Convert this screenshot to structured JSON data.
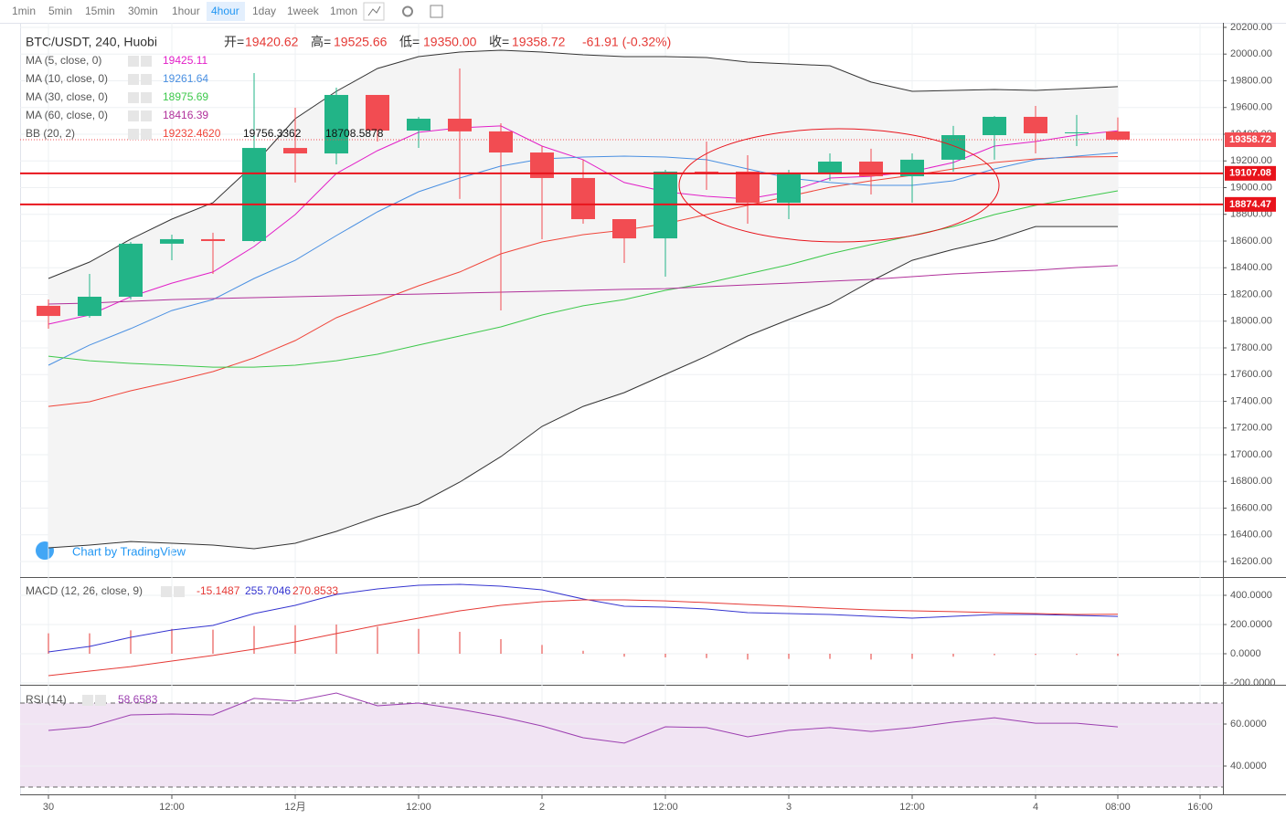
{
  "toolbar": {
    "intervals": [
      "1min",
      "5min",
      "15min",
      "30min",
      "1hour",
      "4hour",
      "1day",
      "1week",
      "1mon"
    ],
    "active": "4hour"
  },
  "watermark": "Chart by TradingView",
  "chart_data": [
    {
      "type": "candlestick",
      "title": "BTC/USDT, 240, Huobi",
      "header": {
        "labels": [
          "开=",
          "高=",
          "低=",
          "收="
        ],
        "values": [
          "19420.62",
          "19525.66",
          "19350.00",
          "19358.72"
        ],
        "change": "-61.91 (-0.32%)"
      },
      "categories": [
        "30",
        null,
        null,
        "12:00",
        null,
        null,
        "12月",
        null,
        null,
        "12:00",
        null,
        null,
        "2",
        null,
        null,
        "12:00",
        null,
        null,
        "3",
        null,
        null,
        "12:00",
        null,
        null,
        "4",
        null,
        "08:00"
      ],
      "future_categories": [
        null,
        "16:00"
      ],
      "open": [
        18115,
        18039,
        18183,
        18580,
        18614,
        18600,
        19297,
        19256,
        19694,
        19427,
        19516,
        19421,
        19263,
        19072,
        18764,
        18620,
        19120,
        19120,
        18887,
        19106,
        19195,
        19085,
        19209,
        19393,
        19530,
        19407,
        19420.62
      ],
      "high": [
        18162,
        18354,
        18593,
        18648,
        18662,
        19858,
        19598,
        19749,
        19694,
        19530,
        19892,
        19482,
        19311,
        19209,
        18764,
        19133,
        19345,
        19243,
        19133,
        19256,
        19291,
        19256,
        19462,
        19537,
        19612,
        19544,
        19525.66
      ],
      "low": [
        17944,
        18026,
        18162,
        18456,
        18354,
        18593,
        19038,
        19174,
        19345,
        19297,
        18915,
        18080,
        18614,
        18730,
        18436,
        18333,
        18983,
        18730,
        18764,
        19051,
        18949,
        18887,
        19120,
        19209,
        19256,
        19311,
        19350
      ],
      "close": [
        18039,
        18183,
        18580,
        18614,
        18600,
        19297,
        19256,
        19694,
        19427,
        19516,
        19421,
        19263,
        19072,
        18764,
        18620,
        19120,
        19113,
        18887,
        19106,
        19195,
        19085,
        19209,
        19393,
        19530,
        19407,
        19414,
        19358.72
      ],
      "up_color": "#22b487",
      "down_color": "#f24c52",
      "ylim": [
        16084,
        20234
      ],
      "yticks": [
        {
          "value": 16200,
          "label": "16200.00"
        },
        {
          "value": 16400,
          "label": "16400.00"
        },
        {
          "value": 16600,
          "label": "16600.00"
        },
        {
          "value": 16800,
          "label": "16800.00"
        },
        {
          "value": 17000,
          "label": "17000.00"
        },
        {
          "value": 17200,
          "label": "17200.00"
        },
        {
          "value": 17400,
          "label": "17400.00"
        },
        {
          "value": 17600,
          "label": "17600.00"
        },
        {
          "value": 17800,
          "label": "17800.00"
        },
        {
          "value": 18000,
          "label": "18000.00"
        },
        {
          "value": 18200,
          "label": "18200.00"
        },
        {
          "value": 18400,
          "label": "18400.00"
        },
        {
          "value": 18600,
          "label": "18600.00"
        },
        {
          "value": 18800,
          "label": "18800.00"
        },
        {
          "value": 19000,
          "label": "19000.00"
        },
        {
          "value": 19200,
          "label": "19200.00"
        },
        {
          "value": 19400,
          "label": "19400.00"
        },
        {
          "value": 19600,
          "label": "19600.00"
        },
        {
          "value": 19800,
          "label": "19800.00"
        },
        {
          "value": 20000,
          "label": "20000.00"
        },
        {
          "value": 20200,
          "label": "20200.00"
        }
      ],
      "grid": true,
      "hlines": [
        19107.08,
        18874.47
      ],
      "hline_color": "#e8141c",
      "series": [
        {
          "name": "MA (5, close, 0)",
          "color": "#e21fc8",
          "values": [
            17978,
            18046,
            18183,
            18285,
            18368,
            18559,
            18798,
            19106,
            19277,
            19414,
            19448,
            19462,
            19311,
            19209,
            19038,
            18969,
            18935,
            18915,
            18969,
            19072,
            19085,
            19120,
            19188,
            19311,
            19345,
            19393,
            19425.11
          ]
        },
        {
          "name": "MA (10, close, 0)",
          "color": "#4a90e2",
          "values": [
            17670,
            17821,
            17944,
            18080,
            18162,
            18320,
            18456,
            18641,
            18819,
            18969,
            19072,
            19161,
            19215,
            19229,
            19236,
            19229,
            19209,
            19140,
            19072,
            19038,
            19017,
            19017,
            19051,
            19140,
            19209,
            19236,
            19261.64
          ]
        },
        {
          "name": "MA (30, close, 0)",
          "color": "#3cc84a",
          "values": [
            17738,
            17704,
            17684,
            17670,
            17656,
            17656,
            17670,
            17704,
            17752,
            17821,
            17889,
            17957,
            18046,
            18115,
            18162,
            18231,
            18285,
            18354,
            18422,
            18504,
            18573,
            18641,
            18709,
            18798,
            18867,
            18921,
            18975.69
          ]
        },
        {
          "name": "MA (60, close, 0)",
          "color": "#b0309a",
          "values": [
            18128,
            18135,
            18149,
            18162,
            18169,
            18176,
            18183,
            18190,
            18197,
            18203,
            18210,
            18217,
            18224,
            18231,
            18238,
            18244,
            18258,
            18272,
            18285,
            18299,
            18313,
            18333,
            18354,
            18368,
            18381,
            18402,
            18416.39
          ]
        }
      ],
      "bb": {
        "name": "BB (20, 2)",
        "basis": {
          "color": "#f0453a",
          "values": [
            17362,
            17397,
            17479,
            17547,
            17622,
            17725,
            17855,
            18026,
            18149,
            18265,
            18368,
            18504,
            18593,
            18648,
            18682,
            18730,
            18798,
            18867,
            18935,
            19003,
            19051,
            19092,
            19140,
            19188,
            19215,
            19229,
            19232.462
          ],
          "last_label": "19232.4620"
        },
        "upper": {
          "color": "#333333",
          "values": [
            18320,
            18443,
            18614,
            18764,
            18887,
            19174,
            19516,
            19721,
            19892,
            19981,
            20015,
            20029,
            20015,
            19995,
            19981,
            19981,
            19974,
            19940,
            19926,
            19913,
            19790,
            19721,
            19728,
            19735,
            19728,
            19742,
            19756.3362
          ]
        },
        "lower": {
          "color": "#333333",
          "values": [
            16303,
            16323,
            16350,
            16337,
            16323,
            16296,
            16337,
            16426,
            16535,
            16631,
            16795,
            16986,
            17212,
            17362,
            17465,
            17602,
            17738,
            17889,
            18012,
            18128,
            18299,
            18456,
            18538,
            18607,
            18709,
            18709,
            18708.5878
          ]
        }
      }
    },
    {
      "type": "macd",
      "title": "MACD (12, 26, close, 9)",
      "ylim": [
        -212.5,
        518.75
      ],
      "yticks": [
        {
          "value": 400,
          "label": "400.0000"
        },
        {
          "value": 200,
          "label": "200.0000"
        },
        {
          "value": 0,
          "label": "0.0000"
        },
        {
          "value": -200,
          "label": "-200.0000"
        }
      ],
      "histogram": {
        "color": "#e53935",
        "values": [
          140,
          140,
          160,
          170,
          165,
          190,
          195,
          200,
          185,
          170,
          150,
          100,
          60,
          20,
          -20,
          -25,
          -30,
          -40,
          -35,
          -35,
          -40,
          -35,
          -20,
          -10,
          -8,
          -8,
          -15.1487
        ]
      },
      "series": [
        {
          "name": "MACD",
          "color": "#3535d0",
          "values": [
            12.5,
            50,
            112.5,
            162.5,
            193.75,
            275,
            331,
            406,
            444,
            469,
            475,
            462.5,
            437.5,
            375,
            325,
            319,
            306,
            281,
            275,
            269,
            256,
            244,
            256,
            269,
            269,
            262.5,
            255.7046
          ]
        },
        {
          "name": "Signal",
          "color": "#e53935",
          "values": [
            -150,
            -119,
            -88,
            -50,
            -12,
            31,
            81,
            138,
            194,
            244,
            294,
            331,
            356,
            369,
            369,
            362,
            350,
            337,
            325,
            312,
            300,
            294,
            288,
            281,
            275,
            269,
            270.8533
          ]
        }
      ]
    },
    {
      "type": "rsi",
      "title": "RSI (14)",
      "color": "#9c3fb0",
      "band_fill": "#f1e4f3",
      "ylim": [
        26.52,
        77.83
      ],
      "yticks": [
        {
          "value": 60,
          "label": "60.0000"
        },
        {
          "value": 40,
          "label": "40.0000"
        }
      ],
      "bands": [
        70,
        30
      ],
      "values": [
        56.96,
        58.7,
        64.35,
        64.8,
        64.35,
        72.2,
        70.9,
        74.8,
        68.7,
        70,
        67,
        63.5,
        59.1,
        53.5,
        50.9,
        58.7,
        58.3,
        53.9,
        57,
        58.3,
        56.5,
        58.3,
        60.9,
        63,
        60.4,
        60.4,
        58.6583
      ]
    }
  ]
}
